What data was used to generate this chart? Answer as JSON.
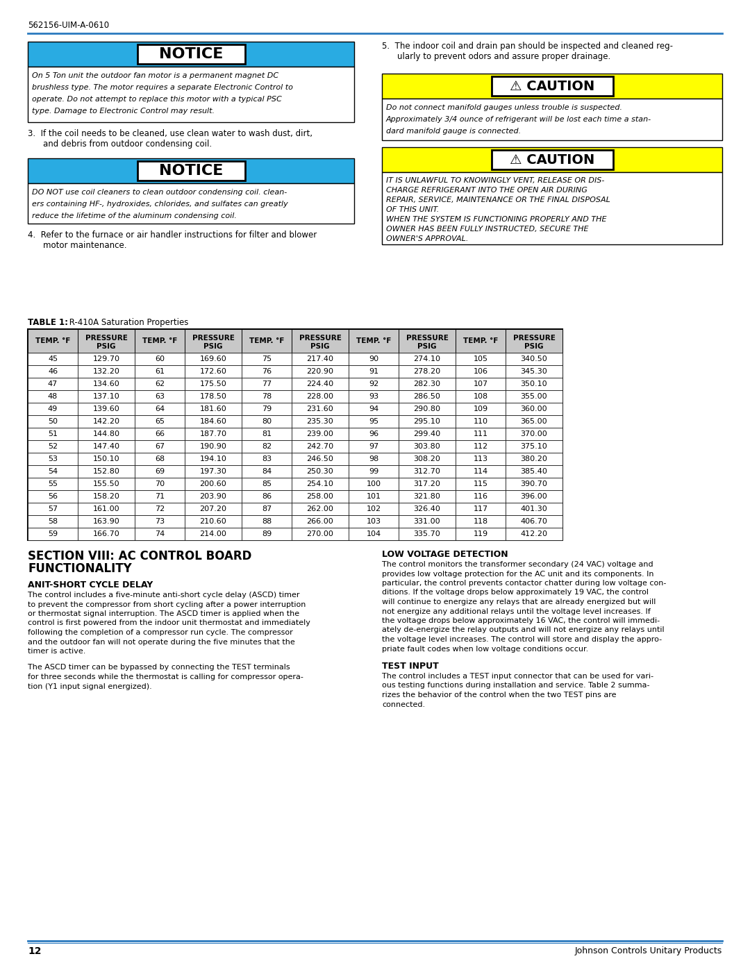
{
  "header_code": "562156-UIM-A-0610",
  "header_line_color": "#2a7abf",
  "notice_bg": "#29abe2",
  "caution_bg": "#ffff00",
  "table_header_bg": "#c8c8c8",
  "table_data": [
    [
      45,
      129.7,
      60,
      169.6,
      75,
      217.4,
      90,
      274.1,
      105,
      340.5
    ],
    [
      46,
      132.2,
      61,
      172.6,
      76,
      220.9,
      91,
      278.2,
      106,
      345.3
    ],
    [
      47,
      134.6,
      62,
      175.5,
      77,
      224.4,
      92,
      282.3,
      107,
      350.1
    ],
    [
      48,
      137.1,
      63,
      178.5,
      78,
      228.0,
      93,
      286.5,
      108,
      355.0
    ],
    [
      49,
      139.6,
      64,
      181.6,
      79,
      231.6,
      94,
      290.8,
      109,
      360.0
    ],
    [
      50,
      142.2,
      65,
      184.6,
      80,
      235.3,
      95,
      295.1,
      110,
      365.0
    ],
    [
      51,
      144.8,
      66,
      187.7,
      81,
      239.0,
      96,
      299.4,
      111,
      370.0
    ],
    [
      52,
      147.4,
      67,
      190.9,
      82,
      242.7,
      97,
      303.8,
      112,
      375.1
    ],
    [
      53,
      150.1,
      68,
      194.1,
      83,
      246.5,
      98,
      308.2,
      113,
      380.2
    ],
    [
      54,
      152.8,
      69,
      197.3,
      84,
      250.3,
      99,
      312.7,
      114,
      385.4
    ],
    [
      55,
      155.5,
      70,
      200.6,
      85,
      254.1,
      100,
      317.2,
      115,
      390.7
    ],
    [
      56,
      158.2,
      71,
      203.9,
      86,
      258.0,
      101,
      321.8,
      116,
      396.0
    ],
    [
      57,
      161.0,
      72,
      207.2,
      87,
      262.0,
      102,
      326.4,
      117,
      401.3
    ],
    [
      58,
      163.9,
      73,
      210.6,
      88,
      266.0,
      103,
      331.0,
      118,
      406.7
    ],
    [
      59,
      166.7,
      74,
      214.0,
      89,
      270.0,
      104,
      335.7,
      119,
      412.2
    ]
  ],
  "footer_page": "12",
  "footer_company": "Johnson Controls Unitary Products"
}
